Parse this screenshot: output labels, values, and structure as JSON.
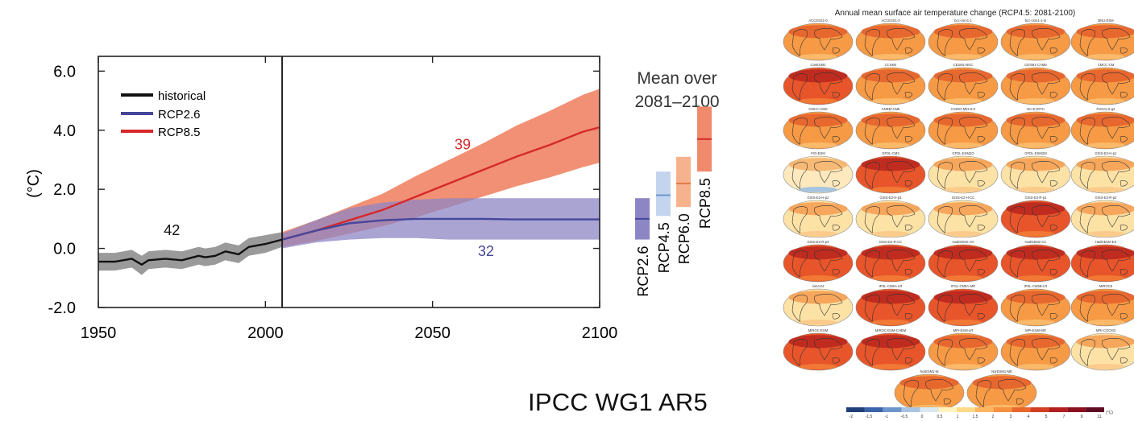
{
  "credit": "IPCC WG1 AR5",
  "chart_data": [
    {
      "type": "line",
      "title": "",
      "xlabel": "",
      "ylabel": "(°C)",
      "xlim": [
        1950,
        2100
      ],
      "ylim": [
        -2.0,
        6.5
      ],
      "x_ticks": [
        "1950",
        "2000",
        "2050",
        "2100"
      ],
      "y_ticks": [
        "6.0",
        "4.0",
        "2.0",
        "0.0",
        "-2.0"
      ],
      "legend_position": "top-left",
      "grid": false,
      "divider_year": 2005,
      "series": [
        {
          "name": "historical",
          "color": "#111111",
          "band_color": "#9a9a9a",
          "x": [
            1950,
            1955,
            1960,
            1963,
            1965,
            1970,
            1975,
            1980,
            1982,
            1985,
            1988,
            1990,
            1992,
            1995,
            2000,
            2005
          ],
          "y": [
            -0.45,
            -0.45,
            -0.35,
            -0.55,
            -0.4,
            -0.35,
            -0.4,
            -0.25,
            -0.3,
            -0.25,
            -0.1,
            -0.15,
            -0.2,
            0.05,
            0.15,
            0.3
          ],
          "lower": [
            -0.75,
            -0.75,
            -0.65,
            -0.9,
            -0.7,
            -0.65,
            -0.7,
            -0.55,
            -0.6,
            -0.55,
            -0.4,
            -0.45,
            -0.5,
            -0.25,
            -0.15,
            0.05
          ],
          "upper": [
            -0.15,
            -0.15,
            -0.05,
            -0.25,
            -0.1,
            -0.05,
            -0.1,
            0.05,
            0.0,
            0.05,
            0.2,
            0.15,
            0.1,
            0.35,
            0.45,
            0.55
          ]
        },
        {
          "name": "RCP2.6",
          "color": "#46469b",
          "band_color": "#8d86c4",
          "x": [
            2005,
            2015,
            2025,
            2035,
            2045,
            2055,
            2065,
            2075,
            2085,
            2095,
            2100
          ],
          "y": [
            0.3,
            0.6,
            0.85,
            0.95,
            1.0,
            1.0,
            1.0,
            0.98,
            0.98,
            0.98,
            0.98
          ],
          "lower": [
            0.0,
            0.2,
            0.3,
            0.35,
            0.35,
            0.3,
            0.3,
            0.3,
            0.3,
            0.3,
            0.3
          ],
          "upper": [
            0.5,
            0.95,
            1.35,
            1.55,
            1.65,
            1.7,
            1.7,
            1.7,
            1.7,
            1.7,
            1.7
          ]
        },
        {
          "name": "RCP8.5",
          "color": "#d6292a",
          "band_color": "#f08a6d",
          "x": [
            2005,
            2015,
            2025,
            2035,
            2045,
            2055,
            2065,
            2075,
            2085,
            2095,
            2100
          ],
          "y": [
            0.3,
            0.6,
            0.95,
            1.3,
            1.75,
            2.2,
            2.65,
            3.1,
            3.5,
            3.95,
            4.1
          ],
          "lower": [
            0.05,
            0.25,
            0.5,
            0.75,
            1.05,
            1.4,
            1.75,
            2.1,
            2.4,
            2.75,
            2.9
          ],
          "upper": [
            0.55,
            0.95,
            1.4,
            1.85,
            2.45,
            3.0,
            3.55,
            4.15,
            4.65,
            5.2,
            5.4
          ]
        }
      ],
      "annotations": [
        {
          "text": "42",
          "x": 1972,
          "y": 0.45,
          "color": "#111111"
        },
        {
          "text": "39",
          "x": 2059,
          "y": 3.35,
          "color": "#d6292a"
        },
        {
          "text": "32",
          "x": 2066,
          "y": -0.25,
          "color": "#46469b"
        }
      ],
      "side_panel": {
        "title_lines": [
          "Mean over",
          "2081–2100"
        ],
        "bars": [
          {
            "name": "RCP2.6",
            "low": 0.3,
            "mean": 1.0,
            "high": 1.7,
            "color": "#8d86c4",
            "line_color": "#46469b"
          },
          {
            "name": "RCP4.5",
            "low": 1.1,
            "mean": 1.8,
            "high": 2.6,
            "color": "#c3d4ee",
            "line_color": "#6f96cf"
          },
          {
            "name": "RCP6.0",
            "low": 1.4,
            "mean": 2.2,
            "high": 3.1,
            "color": "#f6b28d",
            "line_color": "#e27a45"
          },
          {
            "name": "RCP8.5",
            "low": 2.6,
            "mean": 3.7,
            "high": 4.8,
            "color": "#f08a6d",
            "line_color": "#d6292a"
          }
        ]
      }
    },
    {
      "type": "heatmap",
      "title": "Annual mean surface air temperature change (RCP4.5: 2081-2100)",
      "colorbar_ticks": [
        "-2",
        "-1.5",
        "-1",
        "-0.5",
        "0",
        "0.5",
        "1",
        "1.5",
        "2",
        "3",
        "4",
        "5",
        "7",
        "9",
        "11"
      ],
      "colorbar_unit": "(°C)",
      "colorbar_colors": [
        "#1f3f78",
        "#3a64a8",
        "#6d95cc",
        "#a9c4e3",
        "#dbe7f3",
        "#fff3c2",
        "#ffd98a",
        "#fdb660",
        "#f6913f",
        "#e9662d",
        "#d33f22",
        "#b31f1f",
        "#8a1020",
        "#5e0a24"
      ],
      "models": [
        "ACCESS1-0",
        "ACCESS1-3",
        "bcc-csm1-1",
        "bcc-csm1-1-m",
        "BNU-ESM",
        "CanESM2",
        "CCSM4",
        "CESM1-BGC",
        "CESM1-CAM5",
        "CMCC-CM",
        "CMCC-CMS",
        "CNRM-CM5",
        "CSIRO-Mk3-6-0",
        "EC-EARTH",
        "FGOALS-g2",
        "FIO-ESM",
        "GFDL-CM3",
        "GFDL-ESM2G",
        "GFDL-ESM2M",
        "GISS-E2-H-p1",
        "GISS-E2-H-p2",
        "GISS-E2-H-p3",
        "GISS-E2-H-CC",
        "GISS-E2-R-p1",
        "GISS-E2-R-p2",
        "GISS-E2-R-p3",
        "GISS-E2-R-CC",
        "HadGEM2-AO",
        "HadGEM2-CC",
        "HadGEM2-ES",
        "inmcm4",
        "IPSL-CM5A-LR",
        "IPSL-CM5A-MR",
        "IPSL-CM5B-LR",
        "MIROC5",
        "MIROC-ESM",
        "MIROC-ESM-CHEM",
        "MPI-ESM-LR",
        "MPI-ESM-MR",
        "MRI-CGCM3",
        "NorESM1-M",
        "NorESM1-ME"
      ],
      "model_warmth": [
        "warm",
        "warm",
        "warm",
        "warm",
        "warm",
        "hot",
        "warm",
        "warm",
        "warm",
        "warm",
        "warm",
        "warm",
        "warm",
        "warm",
        "warm",
        "cool",
        "hot",
        "mild",
        "mild",
        "mild",
        "mild",
        "mild",
        "mild",
        "hot",
        "mild",
        "hot",
        "hot",
        "hot",
        "hot",
        "hot",
        "mild",
        "hot",
        "hot",
        "warm",
        "warm",
        "hot",
        "hot",
        "warm",
        "warm",
        "mild",
        "warm",
        "warm"
      ]
    }
  ]
}
